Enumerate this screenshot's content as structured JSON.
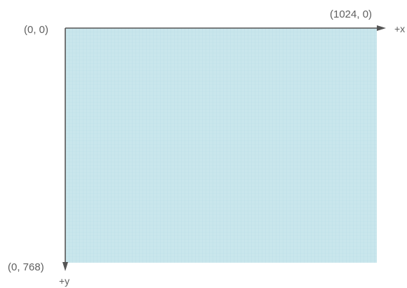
{
  "labels": {
    "origin": "(0, 0)",
    "x_end": "(1024, 0)",
    "y_end": "(0, 768)",
    "x_axis": "+x",
    "y_axis": "+y"
  },
  "colors": {
    "canvas_fill": "#c9e6ec",
    "grid_line": "#b5dbe4",
    "axis_line": "#555555",
    "label_text": "#5f5f5f"
  },
  "grid": {
    "divisions_x": 90,
    "divisions_y": 67
  }
}
